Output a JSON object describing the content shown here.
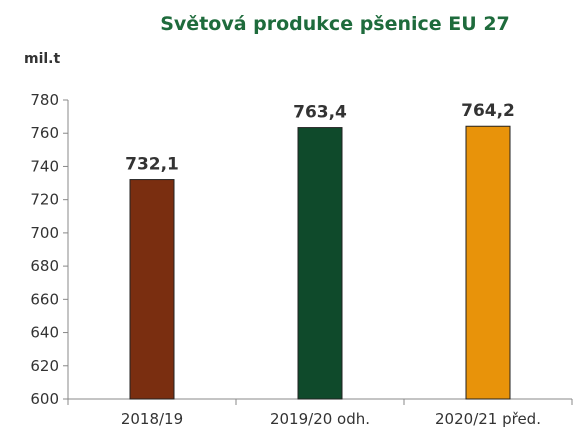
{
  "chart_data": {
    "type": "bar",
    "title": "Světová produkce pšenice  EU 27",
    "ylabel": "mil.t",
    "xlabel": "",
    "categories": [
      "2018/19",
      "2019/20 odh.",
      "2020/21 před."
    ],
    "values": [
      732.1,
      763.4,
      764.2
    ],
    "data_labels": [
      "732,1",
      "763,4",
      "764,2"
    ],
    "bar_colors": [
      "#7a2e10",
      "#0f4a2b",
      "#e8930a"
    ],
    "title_color": "#1e6b3c",
    "ylim": [
      600,
      780
    ],
    "yticks": [
      "600",
      "620",
      "640",
      "660",
      "680",
      "700",
      "720",
      "740",
      "760",
      "780"
    ],
    "grid": false,
    "legend": "none"
  }
}
